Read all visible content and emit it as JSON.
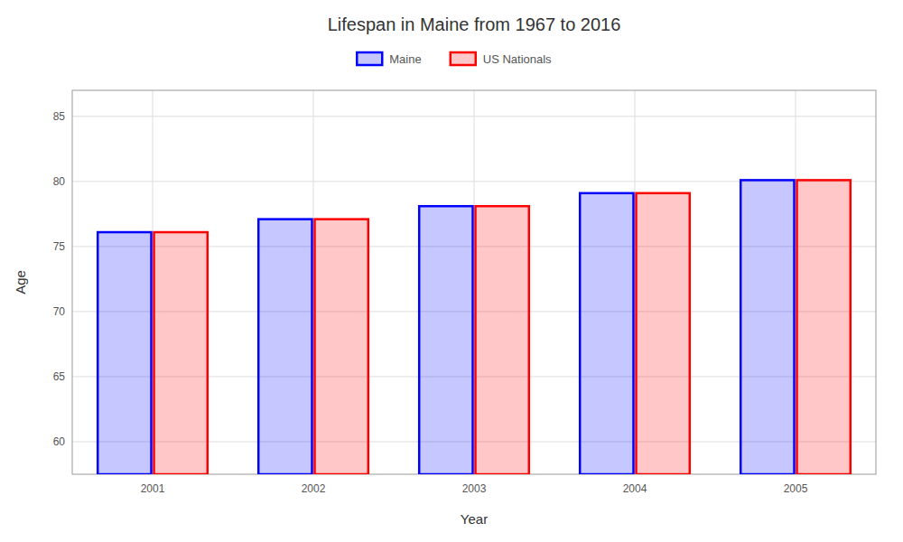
{
  "chart_data": {
    "type": "bar",
    "title": "Lifespan in Maine from 1967 to 2016",
    "xlabel": "Year",
    "ylabel": "Age",
    "categories": [
      "2001",
      "2002",
      "2003",
      "2004",
      "2005"
    ],
    "series": [
      {
        "name": "Maine",
        "color": "#0000ff",
        "values": [
          76.1,
          77.1,
          78.1,
          79.1,
          80.1
        ]
      },
      {
        "name": "US Nationals",
        "color": "#ff0000",
        "values": [
          76.1,
          77.1,
          78.1,
          79.1,
          80.1
        ]
      }
    ],
    "ylim": [
      57.5,
      87
    ],
    "yticks": [
      60,
      65,
      70,
      75,
      80,
      85
    ],
    "grid": true,
    "legend": "top"
  }
}
